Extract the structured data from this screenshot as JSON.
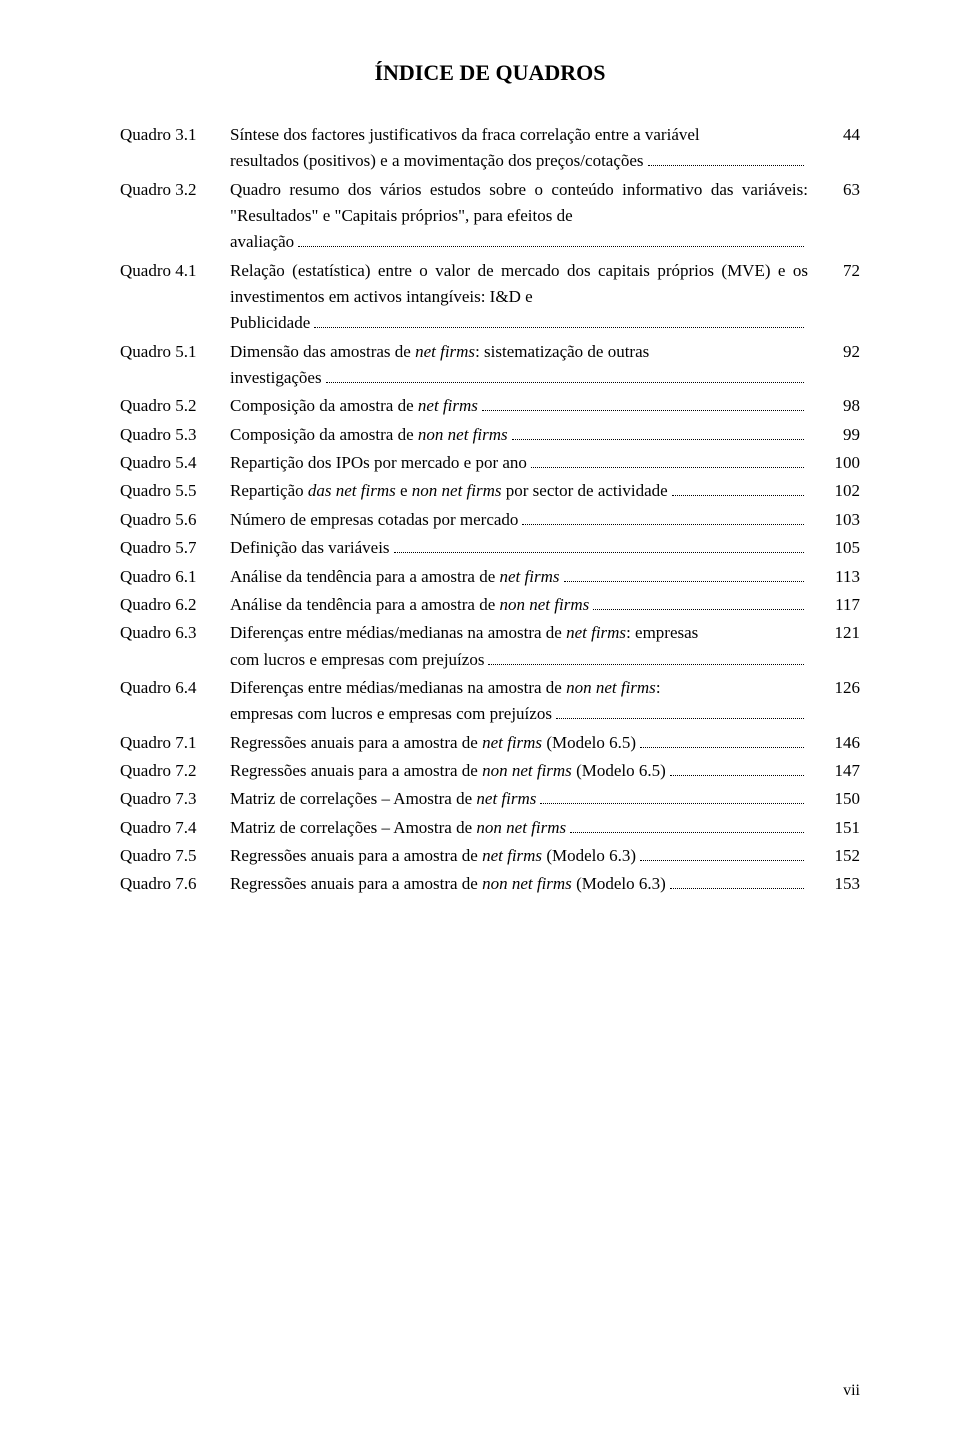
{
  "title": "ÍNDICE DE QUADROS",
  "entries": [
    {
      "label": "Quadro 3.1",
      "desc_pre": "Síntese dos factores justificativos da fraca correlação entre a variável",
      "desc_last": "resultados (positivos) e a movimentação dos preços/cotações",
      "page": "44"
    },
    {
      "label": "Quadro 3.2",
      "desc_pre": "Quadro resumo dos vários estudos sobre o conteúdo informativo das variáveis: \"Resultados\" e \"Capitais próprios\", para efeitos de",
      "desc_last": "avaliação",
      "page": "63"
    },
    {
      "label": "Quadro 4.1",
      "desc_pre": "Relação (estatística) entre o valor de mercado dos capitais próprios (MVE) e os investimentos em activos intangíveis: I&D e",
      "desc_last": "Publicidade",
      "page": "72"
    },
    {
      "label": "Quadro 5.1",
      "desc_pre_html": "Dimensão das amostras de <span class=\"italic\">net firms</span>: sistematização de outras",
      "desc_last": "investigações",
      "page": "92"
    },
    {
      "label": "Quadro 5.2",
      "desc_last_html": "Composição da amostra de <span class=\"italic\">net firms</span>",
      "page": "98"
    },
    {
      "label": "Quadro 5.3",
      "desc_last_html": "Composição da amostra de <span class=\"italic\">non net firms</span>",
      "page": "99"
    },
    {
      "label": "Quadro 5.4",
      "desc_last": "Repartição dos IPOs por mercado e por ano",
      "page": "100"
    },
    {
      "label": "Quadro 5.5",
      "desc_last_html": "Repartição <span class=\"italic\">das net firms</span> e <span class=\"italic\">non net firms</span> por sector de actividade",
      "page": "102"
    },
    {
      "label": "Quadro 5.6",
      "desc_last": "Número de empresas cotadas por mercado",
      "page": "103"
    },
    {
      "label": "Quadro 5.7",
      "desc_last": "Definição das variáveis",
      "page": "105"
    },
    {
      "label": "Quadro 6.1",
      "desc_last_html": "Análise da tendência para a amostra de <span class=\"italic\">net firms</span>",
      "page": "113"
    },
    {
      "label": "Quadro 6.2",
      "desc_last_html": "Análise da tendência para a amostra de <span class=\"italic\">non net firms</span>",
      "page": "117"
    },
    {
      "label": "Quadro 6.3",
      "desc_pre_html": "Diferenças entre médias/medianas na amostra de <span class=\"italic\">net firms</span>: empresas",
      "desc_last": "com lucros e empresas com prejuízos",
      "page": "121"
    },
    {
      "label": "Quadro 6.4",
      "desc_pre_html": "Diferenças entre médias/medianas na amostra de <span class=\"italic\">non net firms</span>:",
      "desc_last": "empresas com lucros e empresas com prejuízos",
      "page": "126"
    },
    {
      "label": "Quadro 7.1",
      "desc_last_html": "Regressões anuais para a amostra de <span class=\"italic\">net firms</span> (Modelo 6.5)",
      "page": "146"
    },
    {
      "label": "Quadro 7.2",
      "desc_last_html": "Regressões anuais para a amostra de <span class=\"italic\">non net firms</span> (Modelo 6.5)",
      "page": "147"
    },
    {
      "label": "Quadro 7.3",
      "desc_last_html": "Matriz de correlações – Amostra de <span class=\"italic\">net firms</span>",
      "page": "150"
    },
    {
      "label": "Quadro 7.4",
      "desc_last_html": "Matriz de correlações – Amostra de <span class=\"italic\">non net firms</span>",
      "page": "151"
    },
    {
      "label": "Quadro 7.5",
      "desc_last_html": "Regressões anuais para a amostra de <span class=\"italic\">net firms</span> (Modelo 6.3)",
      "page": "152"
    },
    {
      "label": "Quadro 7.6",
      "desc_last_html": "Regressões anuais para a amostra de <span class=\"italic\">non net firms</span> (Modelo 6.3)",
      "page": "153"
    }
  ],
  "footer": "vii"
}
